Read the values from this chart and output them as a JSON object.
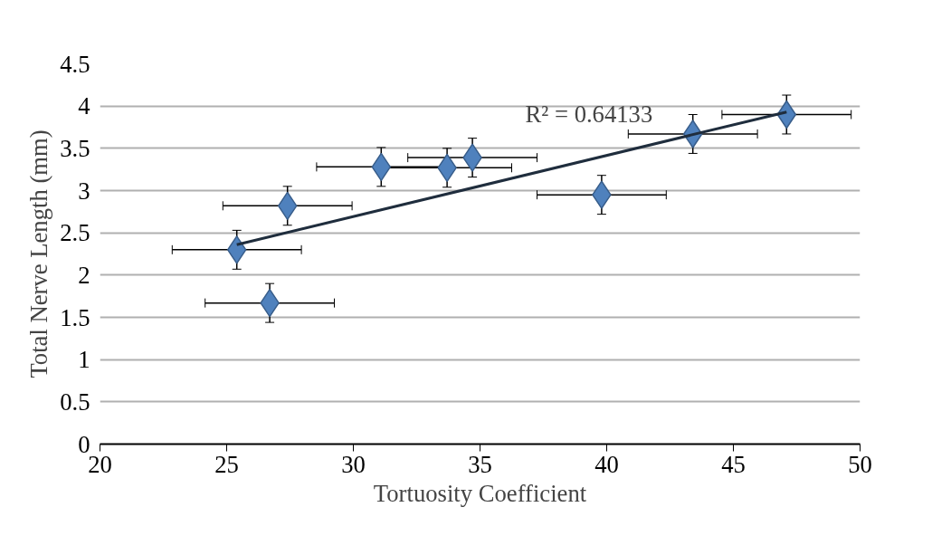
{
  "chart_data": {
    "type": "scatter",
    "xlabel": "Tortuosity Coefficient",
    "ylabel": "Total Nerve Length (mm)",
    "xlim": [
      20,
      50
    ],
    "xticks": [
      20,
      25,
      30,
      35,
      40,
      45,
      50
    ],
    "ylim": [
      0,
      4.5
    ],
    "yticks": [
      0,
      0.5,
      1,
      1.5,
      2,
      2.5,
      3,
      3.5,
      4,
      4.5
    ],
    "grid": "y",
    "marker": "diamond",
    "annotations": [
      "R² = 0.64133"
    ],
    "series": [
      {
        "color": "#4f81bd",
        "x": [
          25.4,
          26.7,
          27.4,
          31.1,
          33.7,
          34.7,
          39.8,
          43.4,
          47.1
        ],
        "values": [
          2.3,
          1.67,
          2.82,
          3.28,
          3.27,
          3.39,
          2.95,
          3.67,
          3.9
        ],
        "errors": [
          0.23,
          0.23,
          0.23,
          0.23,
          0.23,
          0.23,
          0.23,
          0.23,
          0.23
        ],
        "xerrors": [
          2.55,
          2.55,
          2.55,
          2.55,
          2.55,
          2.55,
          2.55,
          2.55,
          2.55
        ]
      },
      {
        "type": "line",
        "color": "#1f2d3d",
        "x": [
          25.4,
          47.1
        ],
        "values": [
          2.36,
          3.93
        ],
        "marker": "none"
      }
    ]
  }
}
